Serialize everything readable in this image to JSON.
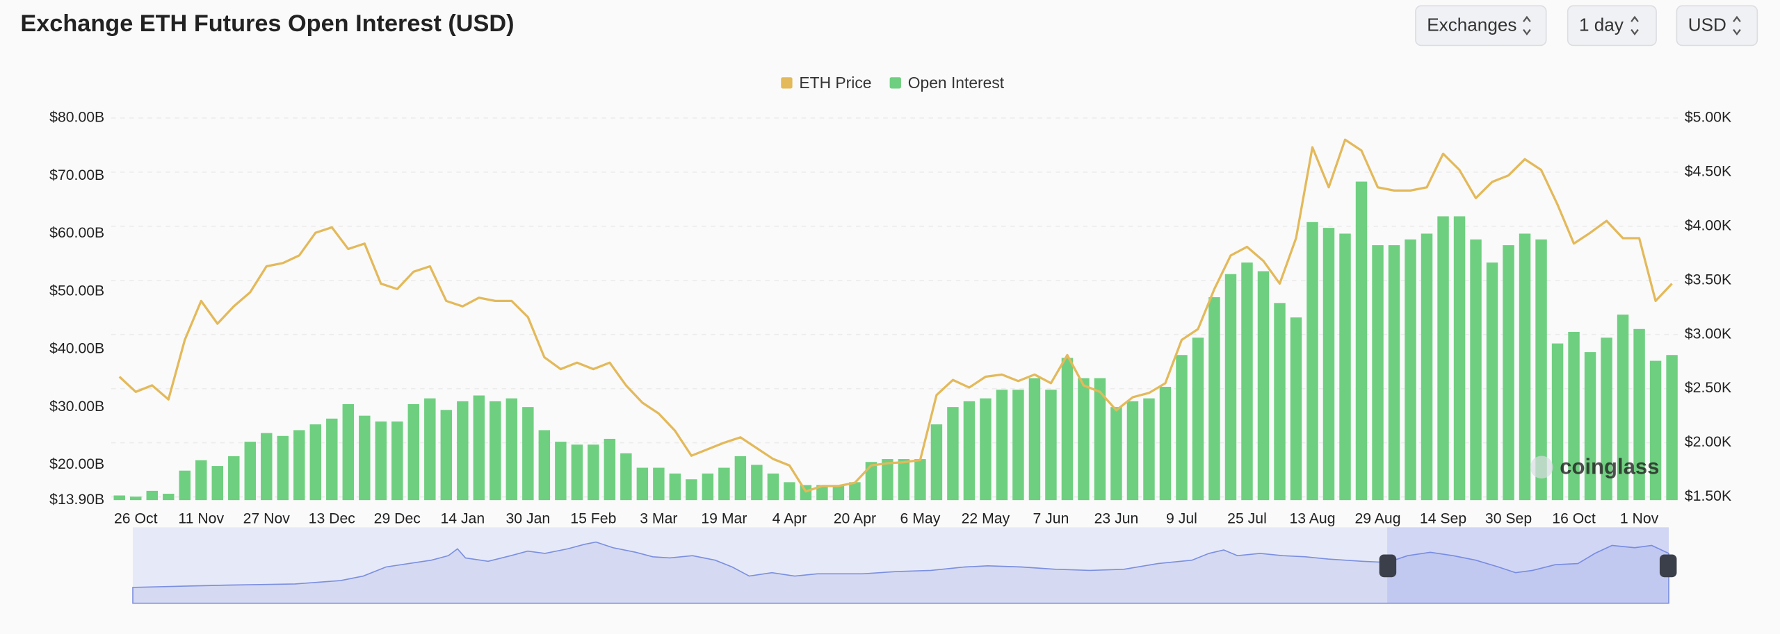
{
  "chart_data": {
    "type": "bar",
    "title": "Exchange ETH Futures Open Interest (USD)",
    "categories": [
      null,
      "26 Oct",
      null,
      null,
      null,
      "11 Nov",
      null,
      null,
      null,
      "27 Nov",
      null,
      null,
      null,
      "13 Dec",
      null,
      null,
      null,
      "29 Dec",
      null,
      null,
      null,
      "14 Jan",
      null,
      null,
      null,
      "30 Jan",
      null,
      null,
      null,
      "15 Feb",
      null,
      null,
      null,
      "3 Mar",
      null,
      null,
      null,
      "19 Mar",
      null,
      null,
      null,
      "4 Apr",
      null,
      null,
      null,
      "20 Apr",
      null,
      null,
      null,
      "6 May",
      null,
      null,
      null,
      "22 May",
      null,
      null,
      null,
      "7 Jun",
      null,
      null,
      null,
      "23 Jun",
      null,
      null,
      null,
      "9 Jul",
      null,
      null,
      null,
      "25 Jul",
      null,
      null,
      null,
      "13 Aug",
      null,
      null,
      null,
      "29 Aug",
      null,
      null,
      null,
      "14 Sep",
      null,
      null,
      null,
      "30 Sep",
      null,
      null,
      null,
      "16 Oct",
      null,
      null,
      null,
      "1 Nov",
      null,
      null
    ],
    "series": [
      {
        "name": "ETH Price",
        "type": "line",
        "axis": "y2",
        "color": "#e3b95a",
        "values": [
          2.61,
          2.47,
          2.53,
          2.4,
          2.95,
          3.31,
          3.1,
          3.26,
          3.39,
          3.63,
          3.66,
          3.73,
          3.94,
          3.99,
          3.79,
          3.84,
          3.47,
          3.42,
          3.58,
          3.63,
          3.31,
          3.26,
          3.34,
          3.31,
          3.31,
          3.16,
          2.79,
          2.68,
          2.74,
          2.68,
          2.74,
          2.53,
          2.37,
          2.27,
          2.11,
          1.88,
          1.94,
          2.0,
          2.05,
          1.95,
          1.85,
          1.79,
          1.55,
          1.6,
          1.6,
          1.63,
          1.79,
          1.81,
          1.82,
          1.84,
          2.44,
          2.58,
          2.51,
          2.61,
          2.63,
          2.57,
          2.63,
          2.55,
          2.81,
          2.53,
          2.47,
          2.3,
          2.42,
          2.46,
          2.55,
          2.95,
          3.05,
          3.42,
          3.73,
          3.81,
          3.68,
          3.47,
          3.89,
          4.73,
          4.36,
          4.8,
          4.7,
          4.36,
          4.33,
          4.33,
          4.36,
          4.67,
          4.52,
          4.26,
          4.41,
          4.47,
          4.62,
          4.52,
          4.2,
          3.84,
          3.94,
          4.05,
          3.89,
          3.89,
          3.31,
          3.47
        ]
      },
      {
        "name": "Open Interest",
        "type": "bar",
        "color": "#6fcf80",
        "values": [
          14.7,
          14.5,
          15.5,
          15.0,
          19.0,
          20.8,
          19.8,
          21.5,
          24.0,
          25.5,
          25.0,
          26.0,
          27.0,
          28.0,
          30.5,
          28.5,
          27.5,
          27.5,
          30.5,
          31.5,
          29.5,
          31.0,
          32.0,
          31.0,
          31.5,
          30.0,
          26.0,
          24.0,
          23.5,
          23.5,
          24.5,
          22.0,
          19.5,
          19.5,
          18.5,
          17.5,
          18.5,
          19.5,
          21.5,
          20.0,
          18.5,
          17.0,
          16.5,
          16.5,
          16.5,
          17.0,
          20.5,
          21.0,
          21.0,
          21.0,
          27.0,
          30.0,
          31.0,
          31.5,
          33.0,
          33.0,
          35.0,
          33.0,
          38.5,
          35.0,
          35.0,
          30.0,
          31.0,
          31.5,
          33.5,
          39.0,
          42.0,
          49.0,
          53.0,
          55.0,
          53.5,
          48.0,
          45.5,
          62.0,
          61.0,
          60.0,
          69.0,
          58.0,
          58.0,
          59.0,
          60.0,
          63.0,
          63.0,
          59.0,
          55.0,
          58.0,
          60.0,
          59.0,
          41.0,
          43.0,
          39.5,
          42.0,
          46.0,
          43.5,
          38.0,
          39.0
        ]
      }
    ],
    "ylim": [
      13.9,
      80
    ],
    "yticks": [
      {
        "value": 13.9,
        "label": "$13.90B"
      },
      {
        "value": 20,
        "label": "$20.00B"
      },
      {
        "value": 30,
        "label": "$30.00B"
      },
      {
        "value": 40,
        "label": "$40.00B"
      },
      {
        "value": 50,
        "label": "$50.00B"
      },
      {
        "value": 60,
        "label": "$60.00B"
      },
      {
        "value": 70,
        "label": "$70.00B"
      },
      {
        "value": 80,
        "label": "$80.00B"
      }
    ],
    "y2lim": [
      1.47,
      5.0
    ],
    "y2ticks": [
      {
        "value": 1.5,
        "label": "$1.50K"
      },
      {
        "value": 2.0,
        "label": "$2.00K"
      },
      {
        "value": 2.5,
        "label": "$2.50K"
      },
      {
        "value": 3.0,
        "label": "$3.00K"
      },
      {
        "value": 3.5,
        "label": "$3.50K"
      },
      {
        "value": 4.0,
        "label": "$4.00K"
      },
      {
        "value": 4.5,
        "label": "$4.50K"
      },
      {
        "value": 5.0,
        "label": "$5.00K"
      }
    ],
    "grid": true,
    "legend": "top",
    "watermark": "coinglass"
  },
  "controls": [
    "Exchanges",
    "1 day",
    "USD"
  ]
}
